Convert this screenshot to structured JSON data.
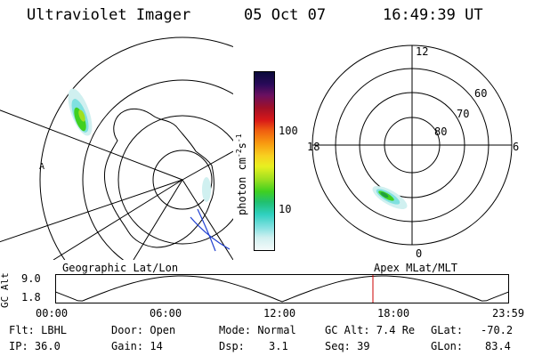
{
  "header": {
    "instrument": "Ultraviolet Imager",
    "date": "05 Oct 07",
    "time": "16:49:39 UT"
  },
  "colorbar": {
    "unit_label": "photon cm",
    "unit_sup1": "-2",
    "unit_mid": "s",
    "unit_sup2": "-1",
    "tick_100": "100",
    "tick_10": "10",
    "colors": [
      "#0a0a3a",
      "#2a0a5a",
      "#6a1060",
      "#a01028",
      "#d81818",
      "#f06010",
      "#f89a10",
      "#f8d020",
      "#e8f020",
      "#a0e020",
      "#40d020",
      "#20c070",
      "#30d0c0",
      "#80e0e0",
      "#d0f0f0",
      "#f4fafa"
    ]
  },
  "left_panel": {
    "title": "Geographic Lat/Lon",
    "marker": "A"
  },
  "right_panel": {
    "title": "Apex  MLat/MLT",
    "mlt_12": "12",
    "mlt_18": "18",
    "mlt_6": "6",
    "mlt_0": "0",
    "lat_60": "60",
    "lat_70": "70",
    "lat_80": "80"
  },
  "altitude_plot": {
    "ylabel": "GC Alt",
    "ytick_top": "9.0",
    "ytick_bottom": "1.8",
    "xticks": [
      "00:00",
      "06:00",
      "12:00",
      "18:00",
      "23:59"
    ],
    "current_time_fraction": 0.7,
    "line_color": "#cc0000"
  },
  "footer": {
    "filter": "Flt: LBHL",
    "ip": "IP: 36.0",
    "door": "Door: Open",
    "gain": "Gain: 14",
    "mode": "Mode: Normal",
    "dsp_label": "Dsp:",
    "dsp_value": "3.1",
    "gcalt": "GC Alt: 7.4 Re",
    "seq": "Seq: 39",
    "glat_label": "GLat:",
    "glat_value": "-70.2",
    "glon_label": "GLon:",
    "glon_value": "83.4"
  }
}
